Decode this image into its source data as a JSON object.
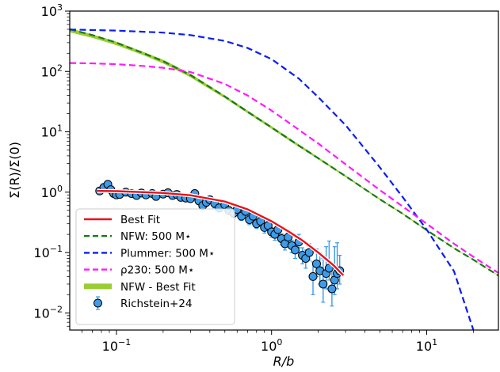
{
  "chart_data": {
    "type": "line",
    "x_scale": "log",
    "y_scale": "log",
    "xlim": [
      0.05,
      29
    ],
    "ylim": [
      0.0052,
      1000
    ],
    "xlabel": "R/b",
    "ylabel": "Σ(R)/Σ(0)",
    "x_ticks": [
      {
        "value": 0.1,
        "base": "10",
        "exp": "−1"
      },
      {
        "value": 1,
        "base": "10",
        "exp": "0"
      },
      {
        "value": 10,
        "base": "10",
        "exp": "1"
      }
    ],
    "y_ticks": [
      {
        "value": 0.01,
        "base": "10",
        "exp": "−2"
      },
      {
        "value": 0.1,
        "base": "10",
        "exp": "−1"
      },
      {
        "value": 1,
        "base": "10",
        "exp": "0"
      },
      {
        "value": 10,
        "base": "10",
        "exp": "1"
      },
      {
        "value": 100,
        "base": "10",
        "exp": "2"
      },
      {
        "value": 1000,
        "base": "10",
        "exp": "3"
      }
    ],
    "legend_position": "lower-left",
    "series": [
      {
        "name": "NFW - Best Fit",
        "style": "band",
        "color": "#9acd32",
        "x": [
          0.05,
          0.07,
          0.1,
          0.15,
          0.2,
          0.3,
          0.5,
          0.7,
          1,
          1.5,
          2,
          3,
          5,
          7,
          10,
          15,
          20,
          29
        ],
        "y_low": [
          445,
          360,
          272,
          185,
          136,
          80,
          36,
          20.4,
          11.2,
          5.6,
          3.5,
          1.78,
          0.74,
          0.43,
          0.23,
          0.117,
          0.075,
          0.041
        ],
        "y_high": [
          520,
          410,
          312,
          210,
          156,
          92,
          40,
          22.6,
          12.4,
          6.2,
          3.8,
          1.9,
          0.78,
          0.45,
          0.24,
          0.12,
          0.077,
          0.042
        ]
      },
      {
        "name": "NFW: 500 M⋆",
        "style": "dashed",
        "color": "#1a7a1a",
        "x": [
          0.05,
          0.07,
          0.1,
          0.15,
          0.2,
          0.3,
          0.5,
          0.7,
          1,
          1.5,
          2,
          3,
          5,
          7,
          10,
          15,
          20,
          29
        ],
        "y": [
          500,
          400,
          300,
          200,
          148,
          87,
          38.5,
          21.5,
          11.8,
          5.9,
          3.65,
          1.84,
          0.76,
          0.44,
          0.235,
          0.118,
          0.076,
          0.0415
        ]
      },
      {
        "name": "Plummer: 500 M⋆",
        "style": "dashed",
        "color": "#0a1ef0",
        "x": [
          0.05,
          0.1,
          0.2,
          0.3,
          0.5,
          0.7,
          1,
          1.5,
          2,
          3,
          4,
          5,
          7,
          10,
          15,
          20
        ],
        "y": [
          495,
          475,
          440,
          400,
          320,
          245,
          160,
          76,
          37.5,
          12.9,
          5.2,
          2.56,
          0.83,
          0.24,
          0.049,
          0.0052
        ]
      },
      {
        "name": "ρ230: 500 M⋆",
        "style": "dashed",
        "color": "#ff1aff",
        "x": [
          0.05,
          0.07,
          0.1,
          0.15,
          0.2,
          0.3,
          0.5,
          0.7,
          1,
          1.5,
          2,
          3,
          5,
          7,
          10,
          15,
          20,
          29
        ],
        "y": [
          138,
          136,
          132,
          123,
          115,
          98,
          62,
          40,
          22.5,
          10.8,
          6.4,
          2.9,
          1.08,
          0.58,
          0.3,
          0.14,
          0.085,
          0.046
        ]
      },
      {
        "name": "Best Fit",
        "style": "solid",
        "color": "#e8121a",
        "x": [
          0.075,
          0.1,
          0.15,
          0.2,
          0.3,
          0.5,
          0.7,
          1,
          1.3,
          1.6,
          2,
          2.5,
          2.9
        ],
        "y": [
          1.05,
          1.04,
          1.0,
          0.97,
          0.89,
          0.7,
          0.52,
          0.33,
          0.22,
          0.155,
          0.1,
          0.062,
          0.042
        ]
      },
      {
        "name": "Richstein+24",
        "style": "errorbar",
        "color": "#3d9be9",
        "x": [
          0.078,
          0.083,
          0.088,
          0.092,
          0.096,
          0.1,
          0.105,
          0.115,
          0.125,
          0.135,
          0.145,
          0.155,
          0.17,
          0.18,
          0.2,
          0.215,
          0.23,
          0.245,
          0.26,
          0.28,
          0.3,
          0.32,
          0.34,
          0.36,
          0.38,
          0.4,
          0.43,
          0.46,
          0.5,
          0.53,
          0.57,
          0.6,
          0.64,
          0.68,
          0.72,
          0.76,
          0.8,
          0.85,
          0.9,
          0.95,
          1.0,
          1.05,
          1.1,
          1.16,
          1.22,
          1.28,
          1.35,
          1.42,
          1.5,
          1.58,
          1.66,
          1.75,
          1.85,
          1.95,
          2.05,
          2.15,
          2.25,
          2.35,
          2.45,
          2.55,
          2.65,
          2.75
        ],
        "y": [
          1.05,
          1.2,
          1.35,
          1.1,
          0.95,
          0.9,
          0.92,
          1.0,
          0.95,
          0.88,
          0.97,
          0.9,
          0.95,
          0.85,
          0.93,
          0.98,
          0.88,
          0.92,
          0.82,
          0.8,
          0.78,
          0.95,
          0.72,
          0.6,
          0.68,
          0.75,
          0.65,
          0.55,
          0.62,
          0.5,
          0.45,
          0.52,
          0.4,
          0.48,
          0.35,
          0.4,
          0.3,
          0.33,
          0.26,
          0.28,
          0.22,
          0.2,
          0.24,
          0.17,
          0.14,
          0.18,
          0.13,
          0.11,
          0.15,
          0.09,
          0.08,
          0.1,
          0.04,
          0.065,
          0.05,
          0.03,
          0.045,
          0.055,
          0.025,
          0.035,
          0.045,
          0.05
        ],
        "err_lo": [
          0.1,
          0.15,
          0.2,
          0.15,
          0.1,
          0.1,
          0.1,
          0.1,
          0.1,
          0.1,
          0.1,
          0.1,
          0.1,
          0.1,
          0.1,
          0.1,
          0.1,
          0.1,
          0.1,
          0.1,
          0.1,
          0.12,
          0.1,
          0.1,
          0.1,
          0.1,
          0.1,
          0.08,
          0.08,
          0.07,
          0.07,
          0.07,
          0.06,
          0.07,
          0.06,
          0.06,
          0.05,
          0.05,
          0.05,
          0.05,
          0.04,
          0.04,
          0.04,
          0.035,
          0.03,
          0.035,
          0.03,
          0.03,
          0.03,
          0.025,
          0.025,
          0.025,
          0.02,
          0.025,
          0.02,
          0.015,
          0.02,
          0.02,
          0.012,
          0.015,
          0.02,
          0.02
        ],
        "err_hi": [
          0.1,
          0.15,
          0.2,
          0.15,
          0.1,
          0.1,
          0.1,
          0.1,
          0.1,
          0.1,
          0.1,
          0.1,
          0.1,
          0.1,
          0.1,
          0.1,
          0.1,
          0.1,
          0.1,
          0.1,
          0.1,
          0.12,
          0.1,
          0.1,
          0.1,
          0.1,
          0.1,
          0.08,
          0.08,
          0.07,
          0.07,
          0.07,
          0.06,
          0.07,
          0.06,
          0.06,
          0.05,
          0.05,
          0.05,
          0.05,
          0.04,
          0.04,
          0.04,
          0.035,
          0.03,
          0.035,
          0.03,
          0.03,
          0.05,
          0.03,
          0.03,
          0.04,
          0.03,
          0.05,
          0.05,
          0.05,
          0.08,
          0.1,
          0.04,
          0.09,
          0.1,
          0.04
        ]
      }
    ]
  },
  "legend": [
    {
      "key": "bestfit",
      "label": "Best Fit",
      "kind": "solid",
      "color": "#e8121a"
    },
    {
      "key": "nfw",
      "label": "NFW: 500 M⋆",
      "kind": "dashed",
      "color": "#1a7a1a"
    },
    {
      "key": "plummer",
      "label": "Plummer: 500 M⋆",
      "kind": "dashed",
      "color": "#0a1ef0"
    },
    {
      "key": "rho230",
      "label": "ρ230: 500 M⋆",
      "kind": "dashed",
      "color": "#ff1aff"
    },
    {
      "key": "nfwband",
      "label": "NFW - Best Fit",
      "kind": "band",
      "color": "#9acd32"
    },
    {
      "key": "richstein",
      "label": "Richstein+24",
      "kind": "marker",
      "color": "#3d9be9"
    }
  ]
}
